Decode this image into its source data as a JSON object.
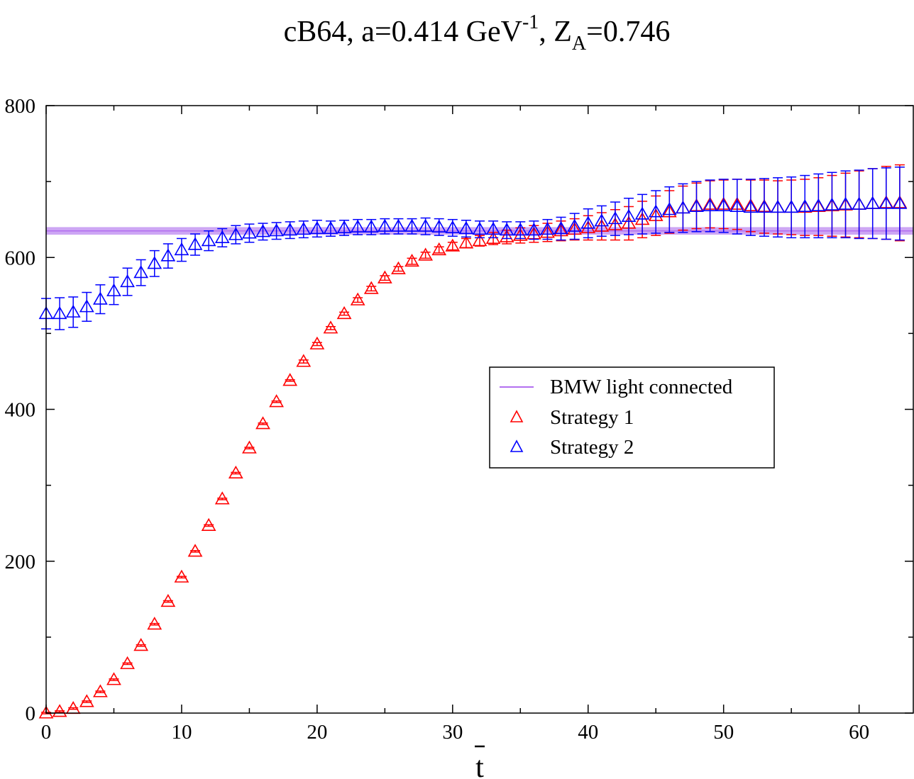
{
  "chart_data": {
    "type": "scatter",
    "title": {
      "prefix": "cB64, a=0.414 GeV",
      "superscript": "-1",
      "middle": ", Z",
      "subscript": "A",
      "suffix": "=0.746"
    },
    "xlabel": "t",
    "ylabel": "",
    "xlim": [
      0,
      64
    ],
    "ylim": [
      0,
      800
    ],
    "xticks": [
      0,
      10,
      20,
      30,
      40,
      50,
      60
    ],
    "yticks": [
      0,
      200,
      400,
      600,
      800
    ],
    "band": {
      "name": "BMW light connected",
      "center": 635,
      "lower": 630,
      "upper": 640,
      "color": "#b36ff0",
      "fill": "#cda6f4"
    },
    "legend": {
      "position": "center-right",
      "entries": [
        "BMW light connected",
        "Strategy 1",
        "Strategy 2"
      ]
    },
    "series": [
      {
        "name": "Strategy 1",
        "color": "#ff0000",
        "marker": "triangle-open",
        "x": [
          0,
          1,
          2,
          3,
          4,
          5,
          6,
          7,
          8,
          9,
          10,
          11,
          12,
          13,
          14,
          15,
          16,
          17,
          18,
          19,
          20,
          21,
          22,
          23,
          24,
          25,
          26,
          27,
          28,
          29,
          30,
          31,
          32,
          33,
          34,
          35,
          36,
          37,
          38,
          39,
          40,
          41,
          42,
          43,
          44,
          45,
          46,
          47,
          48,
          49,
          50,
          51,
          52,
          53,
          54,
          55,
          56,
          57,
          58,
          59,
          60,
          61,
          62,
          63
        ],
        "y": [
          0,
          2,
          6,
          15,
          28,
          44,
          65,
          89,
          117,
          147,
          179,
          213,
          247,
          282,
          316,
          349,
          381,
          410,
          438,
          463,
          486,
          507,
          526,
          544,
          559,
          573,
          585,
          595,
          603,
          610,
          615,
          619,
          622,
          625,
          627,
          629,
          631,
          633,
          635,
          637,
          639,
          641,
          643,
          645,
          650,
          655,
          660,
          665,
          668,
          670,
          670,
          670,
          668,
          667,
          666,
          666,
          666,
          667,
          668,
          669,
          670,
          671,
          672,
          672
        ],
        "err": [
          1,
          1,
          1,
          1,
          1,
          1,
          1,
          1,
          1,
          1,
          1,
          1,
          1,
          1,
          1,
          1,
          1,
          1,
          1,
          2,
          2,
          2,
          2,
          3,
          3,
          3,
          3,
          4,
          4,
          4,
          5,
          6,
          7,
          8,
          9,
          10,
          11,
          12,
          13,
          14,
          16,
          18,
          20,
          22,
          24,
          26,
          28,
          29,
          30,
          31,
          32,
          33,
          34,
          35,
          35,
          36,
          37,
          38,
          40,
          42,
          44,
          46,
          48,
          50
        ]
      },
      {
        "name": "Strategy 2",
        "color": "#0000ff",
        "marker": "triangle-open",
        "x": [
          0,
          1,
          2,
          3,
          4,
          5,
          6,
          7,
          8,
          9,
          10,
          11,
          12,
          13,
          14,
          15,
          16,
          17,
          18,
          19,
          20,
          21,
          22,
          23,
          24,
          25,
          26,
          27,
          28,
          29,
          30,
          31,
          32,
          33,
          34,
          35,
          36,
          37,
          38,
          39,
          40,
          41,
          42,
          43,
          44,
          45,
          46,
          47,
          48,
          49,
          50,
          51,
          52,
          53,
          54,
          55,
          56,
          57,
          58,
          59,
          60,
          61,
          62,
          63
        ],
        "y": [
          526,
          526,
          528,
          535,
          545,
          556,
          568,
          580,
          592,
          602,
          610,
          617,
          622,
          626,
          630,
          632,
          634,
          635,
          636,
          637,
          638,
          638,
          639,
          640,
          640,
          641,
          641,
          641,
          641,
          640,
          639,
          638,
          637,
          637,
          636,
          636,
          636,
          637,
          638,
          641,
          645,
          648,
          651,
          654,
          657,
          660,
          663,
          665,
          667,
          668,
          668,
          667,
          666,
          666,
          666,
          666,
          667,
          668,
          669,
          670,
          670,
          671,
          671,
          671
        ],
        "err": [
          20,
          21,
          20,
          19,
          19,
          18,
          18,
          17,
          17,
          16,
          15,
          14,
          13,
          12,
          12,
          12,
          11,
          11,
          11,
          11,
          11,
          10,
          10,
          10,
          10,
          10,
          10,
          10,
          11,
          11,
          11,
          11,
          11,
          11,
          11,
          11,
          12,
          13,
          15,
          17,
          19,
          20,
          22,
          24,
          26,
          28,
          30,
          32,
          33,
          34,
          35,
          36,
          37,
          38,
          39,
          40,
          41,
          42,
          43,
          44,
          45,
          46,
          47,
          48
        ]
      }
    ]
  }
}
